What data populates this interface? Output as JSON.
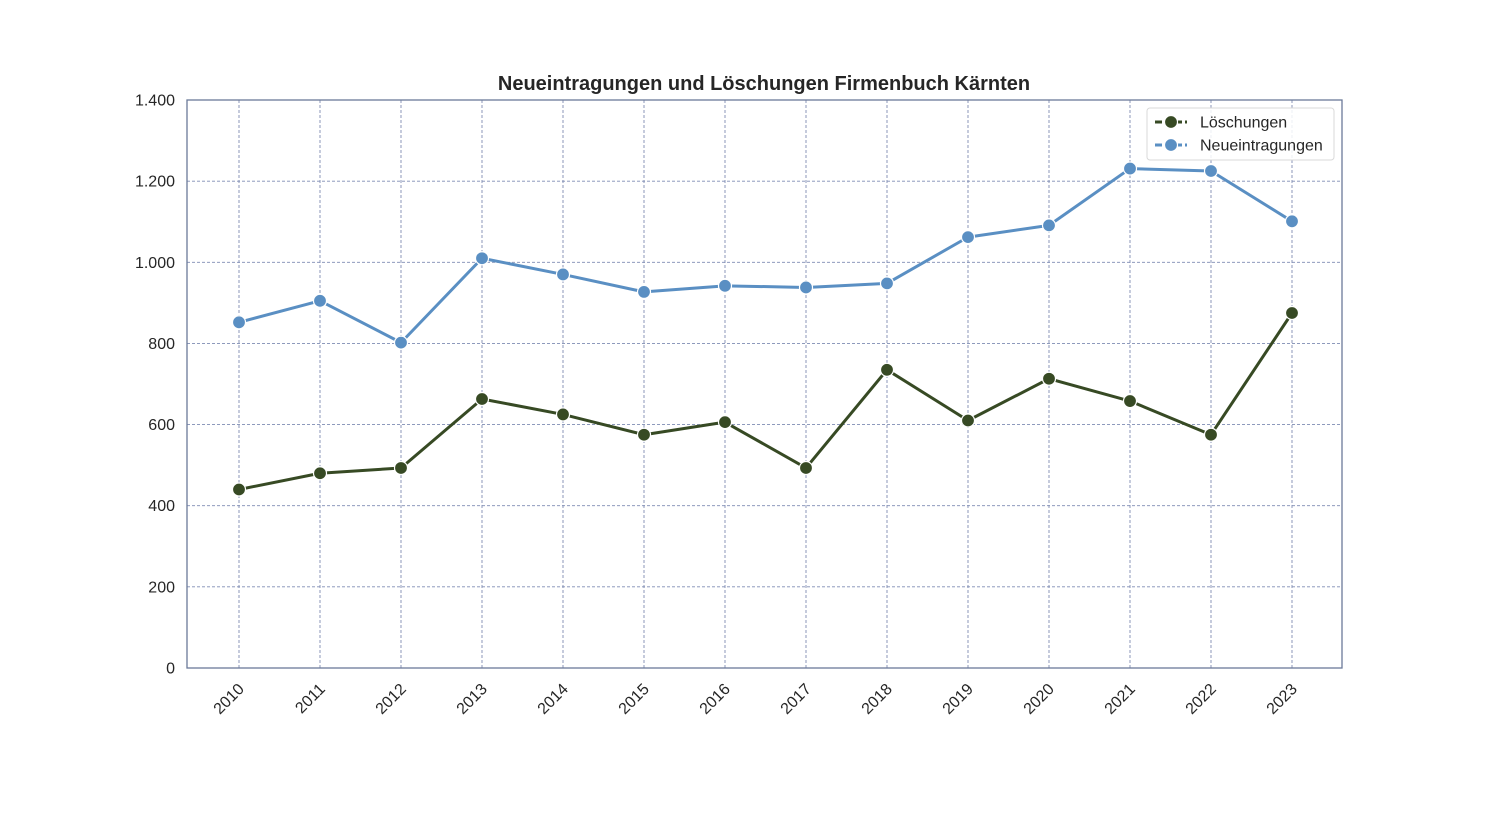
{
  "chart_data": {
    "type": "line",
    "title": "Neueintragungen und Löschungen Firmenbuch Kärnten",
    "xlabel": "",
    "ylabel": "",
    "categories": [
      "2010",
      "2011",
      "2012",
      "2013",
      "2014",
      "2015",
      "2016",
      "2017",
      "2018",
      "2019",
      "2020",
      "2021",
      "2022",
      "2023"
    ],
    "ylim": [
      0,
      1400
    ],
    "yticks": [
      0,
      200,
      400,
      600,
      800,
      1000,
      1200,
      1400
    ],
    "ytick_labels": [
      "0",
      "200",
      "400",
      "600",
      "800",
      "1.000",
      "1.200",
      "1.400"
    ],
    "grid": true,
    "legend_position": "top-right",
    "series": [
      {
        "name": "Löschungen",
        "color": "#374a24",
        "values": [
          440,
          480,
          493,
          663,
          625,
          575,
          606,
          493,
          735,
          610,
          713,
          658,
          575,
          875
        ]
      },
      {
        "name": "Neueintragungen",
        "color": "#5a8fc3",
        "values": [
          852,
          905,
          802,
          1010,
          970,
          927,
          942,
          938,
          948,
          1062,
          1091,
          1231,
          1225,
          1101
        ]
      }
    ]
  }
}
